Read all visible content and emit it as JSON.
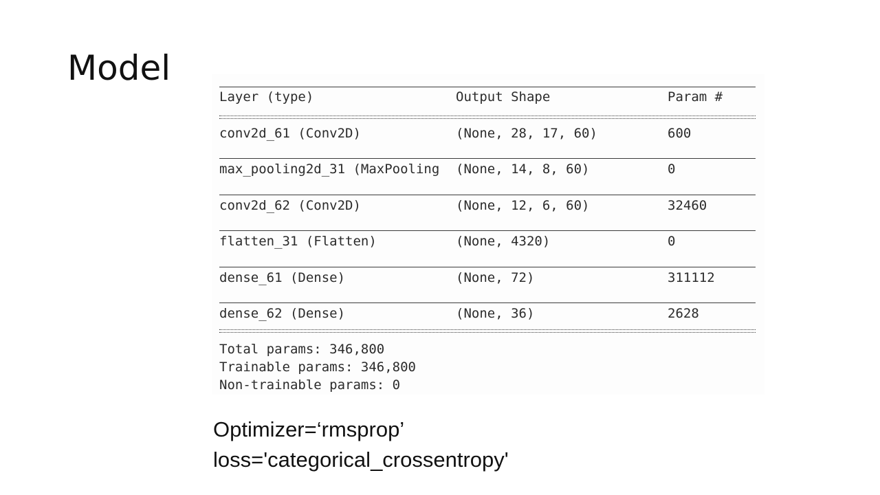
{
  "slide": {
    "title": "Model"
  },
  "model_summary": {
    "headers": {
      "layer": "Layer (type)",
      "output_shape": "Output Shape",
      "params": "Param #"
    },
    "layers": [
      {
        "layer": "conv2d_61 (Conv2D)",
        "output_shape": "(None, 28, 17, 60)",
        "params": "600"
      },
      {
        "layer": "max_pooling2d_31 (MaxPooling",
        "output_shape": "(None, 14, 8, 60)",
        "params": "0"
      },
      {
        "layer": "conv2d_62 (Conv2D)",
        "output_shape": "(None, 12, 6, 60)",
        "params": "32460"
      },
      {
        "layer": "flatten_31 (Flatten)",
        "output_shape": "(None, 4320)",
        "params": "0"
      },
      {
        "layer": "dense_61 (Dense)",
        "output_shape": "(None, 72)",
        "params": "311112"
      },
      {
        "layer": "dense_62 (Dense)",
        "output_shape": "(None, 36)",
        "params": "2628"
      }
    ],
    "totals": {
      "total": "Total params: 346,800",
      "trainable": "Trainable params: 346,800",
      "non_trainable": "Non-trainable params: 0"
    }
  },
  "notes": {
    "optimizer": "Optimizer=‘rmsprop’",
    "loss": "loss='categorical_crossentropy'"
  }
}
